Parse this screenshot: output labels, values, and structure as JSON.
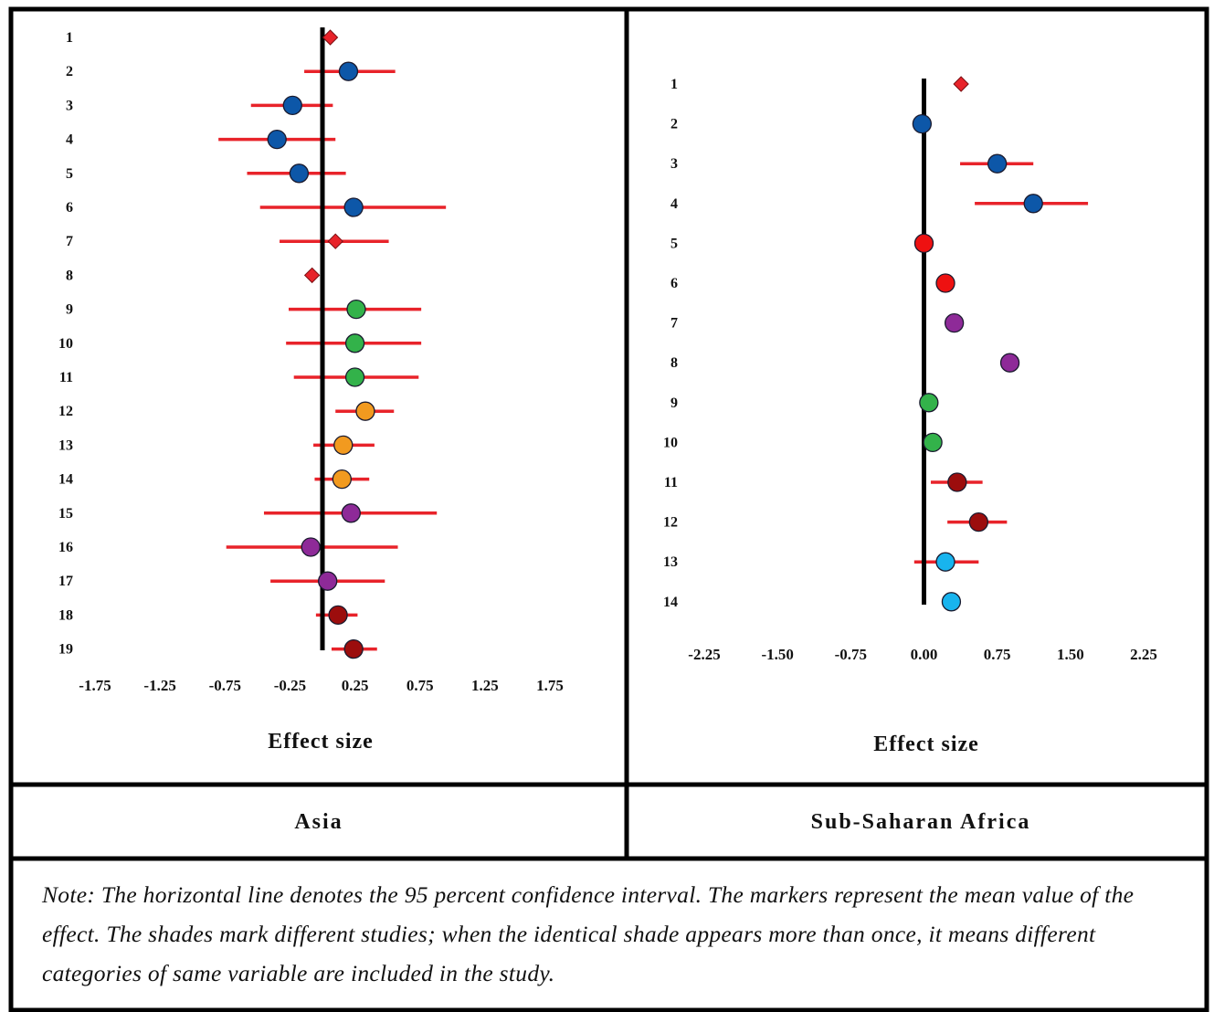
{
  "colors": {
    "ci_line": "#e8232a",
    "zero_line": "#000000",
    "diamond": "#e8232a",
    "blue": "#0d57a8",
    "green": "#33b24a",
    "orange": "#f29a1f",
    "purple": "#8e2a98",
    "darkred": "#9c0d0d",
    "red": "#ee1111",
    "cyan": "#18b4ee"
  },
  "note": "Note: The horizontal line denotes the 95 percent confidence interval. The markers represent the mean value of the effect. The shades mark different studies; when the identical shade appears more than once, it means different categories of same variable are included in the study.",
  "chart_data": [
    {
      "type": "scatter",
      "region": "Asia",
      "xlabel": "Effect size",
      "xlim": [
        -1.75,
        1.75
      ],
      "xticks": [
        "-1.75",
        "-1.25",
        "-0.75",
        "-0.25",
        "0.25",
        "0.75",
        "1.25",
        "1.75"
      ],
      "rows": [
        {
          "label": "1",
          "mean": 0.06,
          "lo": null,
          "hi": null,
          "marker": "diamond",
          "color": "diamond"
        },
        {
          "label": "2",
          "mean": 0.2,
          "lo": -0.14,
          "hi": 0.56,
          "marker": "circle",
          "color": "blue"
        },
        {
          "label": "3",
          "mean": -0.23,
          "lo": -0.55,
          "hi": 0.08,
          "marker": "circle",
          "color": "blue"
        },
        {
          "label": "4",
          "mean": -0.35,
          "lo": -0.8,
          "hi": 0.1,
          "marker": "circle",
          "color": "blue"
        },
        {
          "label": "5",
          "mean": -0.18,
          "lo": -0.58,
          "hi": 0.18,
          "marker": "circle",
          "color": "blue"
        },
        {
          "label": "6",
          "mean": 0.24,
          "lo": -0.48,
          "hi": 0.95,
          "marker": "circle",
          "color": "blue"
        },
        {
          "label": "7",
          "mean": 0.1,
          "lo": -0.33,
          "hi": 0.51,
          "marker": "diamond",
          "color": "diamond"
        },
        {
          "label": "8",
          "mean": -0.08,
          "lo": null,
          "hi": null,
          "marker": "diamond",
          "color": "diamond"
        },
        {
          "label": "9",
          "mean": 0.26,
          "lo": -0.26,
          "hi": 0.76,
          "marker": "circle",
          "color": "green"
        },
        {
          "label": "10",
          "mean": 0.25,
          "lo": -0.28,
          "hi": 0.76,
          "marker": "circle",
          "color": "green"
        },
        {
          "label": "11",
          "mean": 0.25,
          "lo": -0.22,
          "hi": 0.74,
          "marker": "circle",
          "color": "green"
        },
        {
          "label": "12",
          "mean": 0.33,
          "lo": 0.1,
          "hi": 0.55,
          "marker": "circle",
          "color": "orange"
        },
        {
          "label": "13",
          "mean": 0.16,
          "lo": -0.07,
          "hi": 0.4,
          "marker": "circle",
          "color": "orange"
        },
        {
          "label": "14",
          "mean": 0.15,
          "lo": -0.06,
          "hi": 0.36,
          "marker": "circle",
          "color": "orange"
        },
        {
          "label": "15",
          "mean": 0.22,
          "lo": -0.45,
          "hi": 0.88,
          "marker": "circle",
          "color": "purple"
        },
        {
          "label": "16",
          "mean": -0.09,
          "lo": -0.74,
          "hi": 0.58,
          "marker": "circle",
          "color": "purple"
        },
        {
          "label": "17",
          "mean": 0.04,
          "lo": -0.4,
          "hi": 0.48,
          "marker": "circle",
          "color": "purple"
        },
        {
          "label": "18",
          "mean": 0.12,
          "lo": -0.05,
          "hi": 0.27,
          "marker": "circle",
          "color": "darkred"
        },
        {
          "label": "19",
          "mean": 0.24,
          "lo": 0.07,
          "hi": 0.42,
          "marker": "circle",
          "color": "darkred"
        }
      ]
    },
    {
      "type": "scatter",
      "region": "Sub-Saharan Africa",
      "xlabel": "Effect size",
      "xlim": [
        -2.25,
        2.25
      ],
      "xticks": [
        "-2.25",
        "-1.50",
        "-0.75",
        "0.00",
        "0.75",
        "1.50",
        "2.25"
      ],
      "rows": [
        {
          "label": "1",
          "mean": 0.38,
          "lo": null,
          "hi": null,
          "marker": "diamond",
          "color": "diamond"
        },
        {
          "label": "2",
          "mean": -0.02,
          "lo": null,
          "hi": null,
          "marker": "circle",
          "color": "blue"
        },
        {
          "label": "3",
          "mean": 0.75,
          "lo": 0.37,
          "hi": 1.12,
          "marker": "circle",
          "color": "blue"
        },
        {
          "label": "4",
          "mean": 1.12,
          "lo": 0.52,
          "hi": 1.68,
          "marker": "circle",
          "color": "blue"
        },
        {
          "label": "5",
          "mean": 0.0,
          "lo": null,
          "hi": null,
          "marker": "circle",
          "color": "red"
        },
        {
          "label": "6",
          "mean": 0.22,
          "lo": null,
          "hi": null,
          "marker": "circle",
          "color": "red"
        },
        {
          "label": "7",
          "mean": 0.31,
          "lo": null,
          "hi": null,
          "marker": "circle",
          "color": "purple"
        },
        {
          "label": "8",
          "mean": 0.88,
          "lo": null,
          "hi": null,
          "marker": "circle",
          "color": "purple"
        },
        {
          "label": "9",
          "mean": 0.05,
          "lo": null,
          "hi": null,
          "marker": "circle",
          "color": "green"
        },
        {
          "label": "10",
          "mean": 0.09,
          "lo": null,
          "hi": null,
          "marker": "circle",
          "color": "green"
        },
        {
          "label": "11",
          "mean": 0.34,
          "lo": 0.07,
          "hi": 0.6,
          "marker": "circle",
          "color": "darkred"
        },
        {
          "label": "12",
          "mean": 0.56,
          "lo": 0.24,
          "hi": 0.85,
          "marker": "circle",
          "color": "darkred"
        },
        {
          "label": "13",
          "mean": 0.22,
          "lo": -0.1,
          "hi": 0.56,
          "marker": "circle",
          "color": "cyan"
        },
        {
          "label": "14",
          "mean": 0.28,
          "lo": null,
          "hi": null,
          "marker": "circle",
          "color": "cyan"
        }
      ]
    }
  ]
}
